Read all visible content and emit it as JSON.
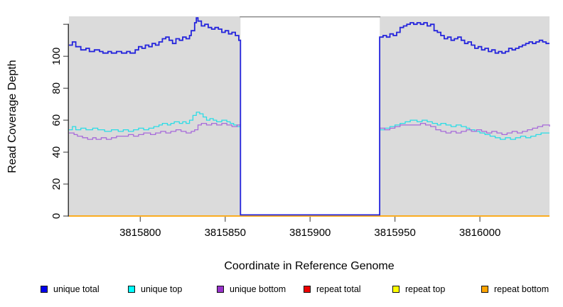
{
  "chart_data": {
    "type": "line",
    "subtype": "step",
    "title": "",
    "xlabel": "Coordinate in Reference Genome",
    "ylabel": "Read Coverage Depth",
    "x_range": [
      3815758,
      3816041
    ],
    "y_range": [
      0,
      125
    ],
    "x_ticks": [
      3815800,
      3815850,
      3815900,
      3815950,
      3816000
    ],
    "y_ticks": [
      0,
      20,
      40,
      60,
      80,
      100,
      120
    ],
    "y_tick_labels": [
      "0",
      "20",
      "40",
      "60",
      "80",
      "100",
      ""
    ],
    "grid": false,
    "panel_background": "#DBDBDB",
    "masked_region": {
      "start": 3815859,
      "end": 3815941,
      "fill": "#FFFFFF",
      "border": "#858585"
    },
    "legend_position": "bottom",
    "legend": [
      {
        "label": "unique total",
        "fill": "#0000EE"
      },
      {
        "label": "unique top",
        "fill": "#00FFFF"
      },
      {
        "label": "unique bottom",
        "fill": "#9932CC"
      },
      {
        "label": "repeat total",
        "fill": "#EE0000"
      },
      {
        "label": "repeat top",
        "fill": "#FFFF00"
      },
      {
        "label": "repeat bottom",
        "fill": "#FFA500"
      }
    ],
    "series": [
      {
        "id": "unique-total",
        "name": "unique total",
        "color": "#2424DC",
        "width": 1.8,
        "z": 6,
        "lift_zero": true,
        "segments": [
          [
            [
              3815758,
              107
            ],
            [
              3815760,
              109
            ],
            [
              3815762,
              106
            ],
            [
              3815765,
              104
            ],
            [
              3815768,
              105
            ],
            [
              3815770,
              103
            ],
            [
              3815773,
              104
            ],
            [
              3815776,
              103
            ],
            [
              3815778,
              102
            ],
            [
              3815781,
              103
            ],
            [
              3815783,
              102
            ],
            [
              3815786,
              103
            ],
            [
              3815789,
              102
            ],
            [
              3815792,
              103
            ],
            [
              3815794,
              102
            ],
            [
              3815797,
              104
            ],
            [
              3815799,
              106
            ],
            [
              3815801,
              105
            ],
            [
              3815803,
              107
            ],
            [
              3815805,
              106
            ],
            [
              3815807,
              108
            ],
            [
              3815809,
              107
            ],
            [
              3815811,
              109
            ],
            [
              3815813,
              111
            ],
            [
              3815815,
              112
            ],
            [
              3815817,
              110
            ],
            [
              3815819,
              108
            ],
            [
              3815821,
              111
            ],
            [
              3815823,
              110
            ],
            [
              3815825,
              112
            ],
            [
              3815827,
              111
            ],
            [
              3815829,
              113
            ],
            [
              3815830,
              116
            ],
            [
              3815832,
              121
            ],
            [
              3815833,
              124
            ],
            [
              3815834,
              122
            ],
            [
              3815836,
              119
            ],
            [
              3815838,
              120
            ],
            [
              3815840,
              118
            ],
            [
              3815842,
              117
            ],
            [
              3815844,
              118
            ],
            [
              3815846,
              117
            ],
            [
              3815848,
              115
            ],
            [
              3815850,
              116
            ],
            [
              3815852,
              114
            ],
            [
              3815854,
              115
            ],
            [
              3815856,
              113
            ],
            [
              3815858,
              110
            ],
            [
              3815859,
              0
            ],
            [
              3815941,
              112
            ],
            [
              3815943,
              113
            ],
            [
              3815945,
              112
            ],
            [
              3815947,
              114
            ],
            [
              3815949,
              113
            ],
            [
              3815951,
              115
            ],
            [
              3815953,
              118
            ],
            [
              3815955,
              119
            ],
            [
              3815957,
              120
            ],
            [
              3815959,
              121
            ],
            [
              3815961,
              120
            ],
            [
              3815963,
              121
            ],
            [
              3815965,
              120
            ],
            [
              3815967,
              121
            ],
            [
              3815969,
              119
            ],
            [
              3815971,
              120
            ],
            [
              3815973,
              116
            ],
            [
              3815975,
              115
            ],
            [
              3815977,
              113
            ],
            [
              3815979,
              111
            ],
            [
              3815981,
              112
            ],
            [
              3815983,
              110
            ],
            [
              3815985,
              111
            ],
            [
              3815987,
              112
            ],
            [
              3815989,
              110
            ],
            [
              3815991,
              108
            ],
            [
              3815993,
              109
            ],
            [
              3815995,
              107
            ],
            [
              3815997,
              105
            ],
            [
              3815999,
              106
            ],
            [
              3816001,
              104
            ],
            [
              3816003,
              105
            ],
            [
              3816005,
              103
            ],
            [
              3816007,
              104
            ],
            [
              3816009,
              102
            ],
            [
              3816011,
              103
            ],
            [
              3816013,
              102
            ],
            [
              3816015,
              103
            ],
            [
              3816017,
              105
            ],
            [
              3816019,
              104
            ],
            [
              3816021,
              105
            ],
            [
              3816023,
              106
            ],
            [
              3816025,
              107
            ],
            [
              3816027,
              108
            ],
            [
              3816029,
              109
            ],
            [
              3816031,
              108
            ],
            [
              3816033,
              109
            ],
            [
              3816035,
              110
            ],
            [
              3816037,
              109
            ],
            [
              3816039,
              108
            ],
            [
              3816041,
              108
            ]
          ]
        ]
      },
      {
        "id": "unique-top",
        "name": "unique top",
        "color": "#2BDCE6",
        "width": 1.3,
        "z": 4,
        "lift_zero": false,
        "segments": [
          [
            [
              3815758,
              54
            ],
            [
              3815760,
              56
            ],
            [
              3815762,
              54
            ],
            [
              3815765,
              55
            ],
            [
              3815768,
              54
            ],
            [
              3815772,
              55
            ],
            [
              3815775,
              54
            ],
            [
              3815779,
              53
            ],
            [
              3815783,
              54
            ],
            [
              3815787,
              53
            ],
            [
              3815790,
              54
            ],
            [
              3815793,
              53
            ],
            [
              3815796,
              54
            ],
            [
              3815799,
              55
            ],
            [
              3815802,
              54
            ],
            [
              3815805,
              55
            ],
            [
              3815808,
              56
            ],
            [
              3815811,
              57
            ],
            [
              3815813,
              58
            ],
            [
              3815816,
              57
            ],
            [
              3815818,
              58
            ],
            [
              3815820,
              59
            ],
            [
              3815823,
              58
            ],
            [
              3815825,
              59
            ],
            [
              3815827,
              58
            ],
            [
              3815829,
              60
            ],
            [
              3815831,
              63
            ],
            [
              3815833,
              65
            ],
            [
              3815835,
              64
            ],
            [
              3815837,
              62
            ],
            [
              3815839,
              60
            ],
            [
              3815841,
              61
            ],
            [
              3815843,
              60
            ],
            [
              3815845,
              59
            ],
            [
              3815848,
              60
            ],
            [
              3815851,
              59
            ],
            [
              3815853,
              58
            ],
            [
              3815855,
              57
            ],
            [
              3815857,
              56
            ],
            [
              3815859,
              56
            ]
          ],
          [
            [
              3815941,
              54
            ],
            [
              3815944,
              55
            ],
            [
              3815947,
              56
            ],
            [
              3815950,
              57
            ],
            [
              3815953,
              58
            ],
            [
              3815956,
              59
            ],
            [
              3815959,
              60
            ],
            [
              3815963,
              59
            ],
            [
              3815966,
              60
            ],
            [
              3815969,
              59
            ],
            [
              3815972,
              58
            ],
            [
              3815975,
              57
            ],
            [
              3815977,
              58
            ],
            [
              3815980,
              57
            ],
            [
              3815983,
              56
            ],
            [
              3815986,
              57
            ],
            [
              3815989,
              56
            ],
            [
              3815992,
              55
            ],
            [
              3815994,
              54
            ],
            [
              3815997,
              53
            ],
            [
              3816000,
              52
            ],
            [
              3816003,
              51
            ],
            [
              3816006,
              50
            ],
            [
              3816009,
              49
            ],
            [
              3816012,
              48
            ],
            [
              3816015,
              49
            ],
            [
              3816018,
              48
            ],
            [
              3816021,
              49
            ],
            [
              3816024,
              50
            ],
            [
              3816027,
              49
            ],
            [
              3816030,
              50
            ],
            [
              3816033,
              51
            ],
            [
              3816036,
              52
            ],
            [
              3816041,
              52
            ]
          ]
        ]
      },
      {
        "id": "unique-bottom",
        "name": "unique bottom",
        "color": "#A76BDA",
        "width": 1.3,
        "z": 5,
        "lift_zero": false,
        "segments": [
          [
            [
              3815758,
              52
            ],
            [
              3815761,
              51
            ],
            [
              3815763,
              50
            ],
            [
              3815766,
              49
            ],
            [
              3815769,
              48
            ],
            [
              3815772,
              49
            ],
            [
              3815774,
              48
            ],
            [
              3815777,
              49
            ],
            [
              3815780,
              48
            ],
            [
              3815783,
              49
            ],
            [
              3815786,
              50
            ],
            [
              3815790,
              50
            ],
            [
              3815793,
              51
            ],
            [
              3815796,
              50
            ],
            [
              3815799,
              51
            ],
            [
              3815802,
              52
            ],
            [
              3815806,
              51
            ],
            [
              3815809,
              52
            ],
            [
              3815812,
              53
            ],
            [
              3815815,
              52
            ],
            [
              3815818,
              53
            ],
            [
              3815821,
              54
            ],
            [
              3815824,
              53
            ],
            [
              3815827,
              52
            ],
            [
              3815830,
              53
            ],
            [
              3815832,
              54
            ],
            [
              3815834,
              57
            ],
            [
              3815836,
              58
            ],
            [
              3815839,
              57
            ],
            [
              3815842,
              58
            ],
            [
              3815845,
              57
            ],
            [
              3815848,
              58
            ],
            [
              3815851,
              57
            ],
            [
              3815854,
              56
            ],
            [
              3815857,
              57
            ],
            [
              3815859,
              57
            ]
          ],
          [
            [
              3815941,
              55
            ],
            [
              3815944,
              54
            ],
            [
              3815947,
              55
            ],
            [
              3815950,
              56
            ],
            [
              3815953,
              57
            ],
            [
              3815961,
              57
            ],
            [
              3815965,
              58
            ],
            [
              3815968,
              57
            ],
            [
              3815971,
              56
            ],
            [
              3815974,
              54
            ],
            [
              3815977,
              53
            ],
            [
              3815980,
              52
            ],
            [
              3815983,
              53
            ],
            [
              3815986,
              52
            ],
            [
              3815989,
              53
            ],
            [
              3815992,
              54
            ],
            [
              3815995,
              53
            ],
            [
              3815998,
              54
            ],
            [
              3816001,
              53
            ],
            [
              3816004,
              52
            ],
            [
              3816007,
              53
            ],
            [
              3816010,
              52
            ],
            [
              3816013,
              51
            ],
            [
              3816016,
              52
            ],
            [
              3816019,
              53
            ],
            [
              3816022,
              52
            ],
            [
              3816025,
              53
            ],
            [
              3816028,
              54
            ],
            [
              3816031,
              55
            ],
            [
              3816034,
              56
            ],
            [
              3816037,
              57
            ],
            [
              3816041,
              56
            ]
          ]
        ]
      },
      {
        "id": "repeat-total",
        "name": "repeat total",
        "color": "#DC0000",
        "width": 1.3,
        "z": 1,
        "lift_zero": false,
        "segments": [
          [
            [
              3815758,
              0
            ],
            [
              3816041,
              0
            ]
          ]
        ]
      },
      {
        "id": "repeat-top",
        "name": "repeat top",
        "color": "#FFFF00",
        "width": 1.3,
        "z": 2,
        "lift_zero": false,
        "segments": [
          [
            [
              3815758,
              0
            ],
            [
              3816041,
              0
            ]
          ]
        ]
      },
      {
        "id": "repeat-bottom",
        "name": "repeat bottom",
        "color": "#FFA500",
        "width": 1.6,
        "z": 3,
        "lift_zero": false,
        "segments": [
          [
            [
              3815758,
              0
            ],
            [
              3816041,
              0
            ]
          ]
        ]
      }
    ]
  }
}
